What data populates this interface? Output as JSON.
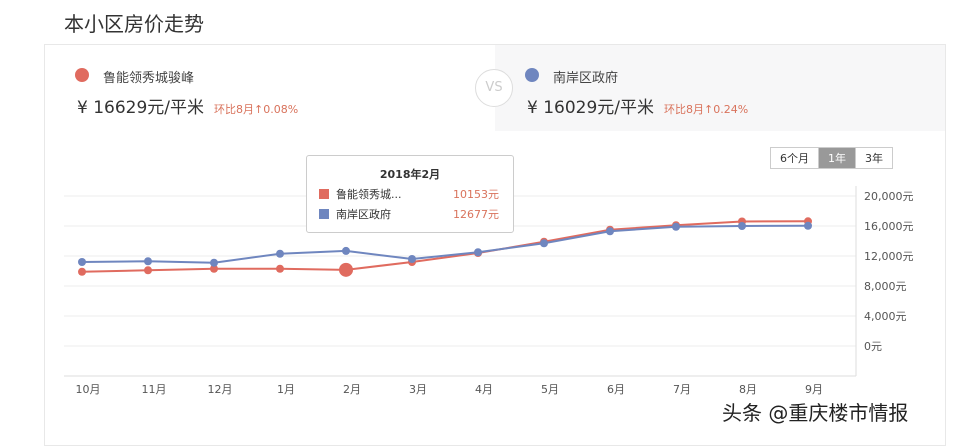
{
  "page_title": "本小区房价走势",
  "compare": {
    "a": {
      "name": "鲁能领秀城骏峰",
      "price": "¥ 16629元/平米",
      "change": "环比8月↑0.08%",
      "color": "#e06b5f"
    },
    "vs": "VS",
    "b": {
      "name": "南岸区政府",
      "price": "¥ 16029元/平米",
      "change": "环比8月↑0.24%",
      "color": "#6f86bf"
    }
  },
  "range_tabs": [
    {
      "label": "6个月",
      "active": false
    },
    {
      "label": "1年",
      "active": true
    },
    {
      "label": "3年",
      "active": false
    }
  ],
  "tooltip": {
    "title": "2018年2月",
    "rows": [
      {
        "name": "鲁能领秀城...",
        "value": "10153元"
      },
      {
        "name": "南岸区政府",
        "value": "12677元"
      }
    ]
  },
  "watermark": "头条 @重庆楼市情报",
  "chart_data": {
    "type": "line",
    "categories": [
      "10月",
      "11月",
      "12月",
      "1月",
      "2月",
      "3月",
      "4月",
      "5月",
      "6月",
      "7月",
      "8月",
      "9月"
    ],
    "y_ticks": [
      "0元",
      "4,000元",
      "8,000元",
      "12,000元",
      "16,000元",
      "20,000元"
    ],
    "ylim": [
      0,
      20000
    ],
    "grid": true,
    "series": [
      {
        "name": "鲁能领秀城骏峰",
        "color": "#e06b5f",
        "values": [
          9900,
          10100,
          10300,
          10300,
          10153,
          11200,
          12400,
          13900,
          15500,
          16100,
          16600,
          16629
        ]
      },
      {
        "name": "南岸区政府",
        "color": "#6f86bf",
        "values": [
          11200,
          11300,
          11100,
          12300,
          12677,
          11600,
          12500,
          13700,
          15300,
          15900,
          16000,
          16029
        ]
      }
    ],
    "highlight_index": 4
  }
}
